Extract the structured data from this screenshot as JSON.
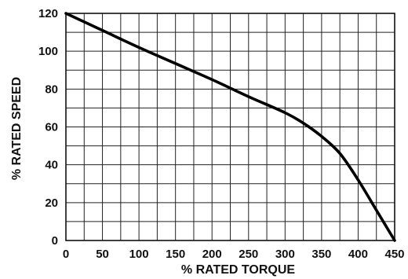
{
  "chart_data": {
    "type": "line",
    "xlabel": "% RATED TORQUE",
    "ylabel": "% RATED SPEED",
    "xlim": [
      0,
      450
    ],
    "ylim": [
      0,
      120
    ],
    "x_ticks": [
      0,
      50,
      100,
      150,
      200,
      250,
      300,
      350,
      400,
      450
    ],
    "y_ticks": [
      0,
      20,
      40,
      60,
      80,
      100,
      120
    ],
    "grid": true,
    "grid_x_step": 25,
    "grid_y_step": 10,
    "series": [
      {
        "x": [
          0,
          50,
          100,
          150,
          200,
          250,
          300,
          325,
          350,
          375,
          400,
          425,
          450
        ],
        "y": [
          120,
          111,
          102,
          93.5,
          85,
          76,
          67.5,
          62,
          55,
          46,
          32,
          16,
          0
        ]
      }
    ],
    "colors": {
      "curve": "#000000",
      "grid": "#222222"
    }
  }
}
